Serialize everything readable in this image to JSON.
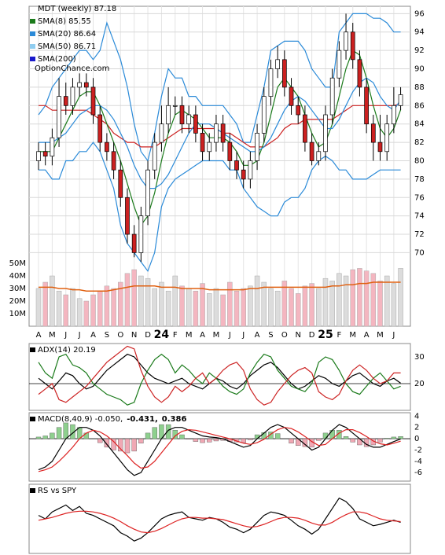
{
  "chart_data": [
    {
      "type": "candlestick",
      "title": "MDT (weekly) 87.18",
      "watermark": "OptionChance.com",
      "x_labels": [
        "A",
        "M",
        "J",
        "J",
        "A",
        "S",
        "O",
        "N",
        "D",
        "24",
        "F",
        "M",
        "A",
        "M",
        "J",
        "J",
        "A",
        "S",
        "O",
        "N",
        "D",
        "25",
        "F",
        "M",
        "A",
        "M",
        "J"
      ],
      "open": [
        80,
        81,
        80.5,
        82.5,
        87,
        86,
        88,
        88.5,
        88,
        85,
        82,
        81,
        79,
        76,
        72,
        70,
        74,
        79,
        82,
        84,
        86,
        86,
        84,
        85,
        83,
        81,
        82,
        84,
        82,
        80,
        79,
        78,
        80,
        83,
        87,
        90,
        91,
        88,
        86,
        85,
        82,
        80,
        81,
        85,
        89,
        92,
        94,
        91,
        88,
        84,
        82,
        81,
        84,
        86
      ],
      "high": [
        82,
        82,
        83.5,
        89,
        88.5,
        89,
        89.5,
        89.5,
        89,
        86,
        83,
        82,
        80,
        77,
        73,
        75,
        80,
        83,
        86,
        88,
        87,
        87,
        86,
        86,
        84,
        83,
        85,
        85,
        83,
        81,
        80,
        81,
        84,
        88,
        91,
        92.5,
        92,
        89,
        87,
        86,
        83,
        82,
        86,
        90,
        93,
        96,
        95,
        92,
        89,
        85,
        85,
        85,
        88,
        88
      ],
      "low": [
        79,
        79.5,
        79.5,
        81.5,
        85,
        85,
        87,
        87,
        84,
        81,
        80,
        78,
        75,
        71,
        69.5,
        69,
        73,
        78,
        81,
        83,
        85,
        83,
        83,
        82,
        80,
        80,
        81,
        81,
        79,
        78,
        77,
        77,
        79,
        82,
        86,
        89,
        87,
        85,
        84,
        81,
        79.5,
        79.5,
        80,
        84,
        88,
        91,
        90,
        87,
        83,
        80,
        80,
        80,
        83,
        85.5
      ],
      "close": [
        81,
        80.5,
        82.5,
        87,
        86,
        88,
        88.5,
        88,
        85,
        82,
        81,
        79,
        76,
        72,
        70,
        74,
        79,
        82,
        84,
        86,
        86,
        84,
        85,
        83,
        81,
        82,
        84,
        82,
        80,
        79,
        78,
        80,
        83,
        87,
        90,
        91,
        88,
        86,
        85,
        82,
        80,
        81,
        85,
        89,
        92,
        94,
        91,
        88,
        84,
        82,
        81,
        84,
        86,
        87.18
      ],
      "up_color": "#ffffff",
      "down_color": "#cc2020",
      "series": [
        {
          "name": "SMA(8) 85.55",
          "color": "#1a7a1a",
          "values": [
            81,
            81,
            81,
            82.5,
            84,
            85.5,
            87,
            87.5,
            87.5,
            86,
            84,
            82,
            80,
            77.5,
            75,
            73,
            74,
            76.5,
            80,
            83,
            85,
            85.5,
            85,
            84.5,
            83.5,
            82.5,
            82.5,
            82.5,
            82,
            81,
            79.5,
            79.5,
            80,
            82,
            85,
            88,
            89,
            88,
            87,
            85,
            83,
            81.5,
            82,
            84,
            87,
            90,
            92,
            91.5,
            89,
            86,
            83.5,
            82.5,
            83.5,
            85.55
          ]
        },
        {
          "name": "SMA(20) 86.64",
          "color": "#2a8ad8",
          "values": [
            82,
            82,
            82,
            82.5,
            83,
            84,
            85,
            85.5,
            86,
            86,
            85.5,
            84.5,
            83,
            81.5,
            79.5,
            78,
            77,
            77,
            77.5,
            78.5,
            80,
            81.5,
            83,
            84,
            84,
            84,
            83.5,
            83,
            82.5,
            82,
            81.5,
            81,
            81,
            81.5,
            82.5,
            84,
            85.5,
            86.5,
            87,
            86.5,
            85.5,
            84.5,
            83.5,
            83.5,
            84.5,
            86,
            87.5,
            88.5,
            89,
            88.5,
            87,
            86,
            85.5,
            86.64
          ]
        },
        {
          "name": "SMA(50) 86.71",
          "color": "#8fcdf0"
        },
        {
          "name": "SMA(200)",
          "color": "#1a1acc"
        }
      ],
      "bands": {
        "color": "#2a8ad8",
        "upper": [
          85,
          86,
          88,
          89,
          90,
          91,
          92,
          92,
          91,
          92,
          95,
          93,
          91,
          88,
          84,
          81,
          80,
          83,
          87,
          90,
          89,
          89,
          87,
          87,
          86,
          86,
          86,
          86,
          85,
          84,
          82,
          82,
          85,
          88,
          92,
          92.5,
          93,
          93,
          93,
          92,
          90,
          89,
          88,
          88,
          94,
          95,
          96,
          96,
          96,
          95.5,
          95.5,
          95,
          94,
          94
        ],
        "lower": [
          79,
          79,
          78,
          78,
          80,
          80,
          81,
          81,
          82,
          81,
          79,
          77,
          73,
          71,
          70,
          69,
          68,
          70,
          75,
          77,
          78,
          78.5,
          79,
          79.5,
          80,
          80,
          80,
          80,
          79,
          79,
          77,
          76,
          75,
          74.5,
          74,
          74,
          75.5,
          76,
          76,
          77,
          79,
          80,
          80.5,
          80,
          79,
          79,
          78,
          78,
          78,
          78.5,
          79,
          79,
          79,
          79
        ]
      },
      "overlays": [
        {
          "color": "#cc2222",
          "values": [
            86,
            86,
            85.5,
            85.5,
            85.5,
            85.5,
            85.5,
            85.5,
            85,
            84.5,
            84,
            83,
            82.5,
            82,
            82,
            81.5,
            81.5,
            81.5,
            82,
            82.5,
            83,
            83.5,
            83.5,
            83.5,
            83.5,
            83.5,
            83.5,
            83,
            83,
            82.5,
            82,
            81.5,
            81.5,
            81.5,
            82,
            82.5,
            83.5,
            84,
            84,
            84.5,
            84.5,
            84.5,
            84.5,
            84.5,
            85,
            85.5,
            86,
            86,
            86,
            86,
            86,
            86,
            86,
            86.2
          ]
        }
      ],
      "ylim": [
        62,
        96.8
      ],
      "yticks": [
        70,
        72,
        74,
        76,
        78,
        80,
        82,
        84,
        86,
        88,
        90,
        92,
        94,
        96
      ],
      "grid": true,
      "volume": {
        "values": [
          30,
          35,
          40,
          28,
          25,
          30,
          22,
          20,
          25,
          28,
          32,
          30,
          35,
          42,
          45,
          40,
          38,
          30,
          35,
          28,
          40,
          32,
          30,
          28,
          34,
          26,
          30,
          25,
          35,
          28,
          30,
          32,
          40,
          35,
          30,
          28,
          36,
          30,
          26,
          32,
          34,
          30,
          38,
          36,
          42,
          40,
          45,
          46,
          44,
          42,
          36,
          40,
          34,
          46
        ],
        "average": [
          31,
          31,
          31,
          30,
          30,
          29,
          29,
          28,
          28,
          28,
          28,
          29,
          30,
          31,
          32,
          32,
          32,
          32,
          31,
          31,
          31,
          30,
          30,
          30,
          30,
          29,
          29,
          29,
          29,
          29,
          29,
          30,
          30,
          31,
          31,
          31,
          31,
          31,
          31,
          31,
          31,
          31,
          31,
          32,
          32,
          33,
          33,
          34,
          34,
          35,
          35,
          35,
          35,
          35
        ],
        "up_color": "#dcdcdc",
        "down_color": "#f4b6c0",
        "avg_color": "#e06010",
        "ylim": [
          0,
          254.4
        ],
        "yticks": [
          {
            "value": 10,
            "label": "10M"
          },
          {
            "value": 20,
            "label": "20M"
          },
          {
            "value": 30,
            "label": "30M"
          },
          {
            "value": 40,
            "label": "40M"
          },
          {
            "value": 50,
            "label": "50M"
          }
        ]
      }
    },
    {
      "type": "line",
      "title": "ADX(14) 20.19",
      "ylim": [
        10,
        35
      ],
      "yticks": [
        20,
        30
      ],
      "series": [
        {
          "color": "#000000",
          "values": [
            22,
            20,
            18,
            21,
            24,
            23,
            20,
            18,
            19,
            22,
            25,
            27,
            29,
            31,
            30,
            27,
            24,
            22,
            21,
            20,
            21,
            22,
            20,
            19,
            18,
            20,
            22,
            21,
            19,
            18,
            20,
            23,
            25,
            27,
            28,
            26,
            23,
            20,
            18,
            19,
            21,
            23,
            22,
            20,
            19,
            21,
            23,
            24,
            22,
            20,
            19,
            21,
            22,
            20.19
          ]
        },
        {
          "color": "#1a7a1a",
          "values": [
            28,
            24,
            22,
            30,
            31,
            27,
            26,
            24,
            20,
            18,
            16,
            15,
            14,
            12,
            13,
            20,
            25,
            29,
            31,
            29,
            24,
            27,
            25,
            22,
            20,
            24,
            22,
            19,
            17,
            16,
            18,
            24,
            28,
            31,
            30,
            25,
            22,
            19,
            18,
            17,
            20,
            28,
            30,
            29,
            25,
            20,
            17,
            16,
            19,
            22,
            24,
            21,
            18,
            19
          ]
        },
        {
          "color": "#cc2222",
          "values": [
            16,
            18,
            20,
            14,
            13,
            15,
            17,
            19,
            22,
            25,
            28,
            30,
            32,
            34,
            33,
            25,
            19,
            15,
            13,
            15,
            19,
            17,
            19,
            22,
            24,
            20,
            22,
            25,
            27,
            28,
            25,
            18,
            14,
            12,
            13,
            17,
            20,
            23,
            25,
            26,
            24,
            17,
            15,
            14,
            16,
            21,
            25,
            27,
            25,
            22,
            20,
            21,
            24,
            24
          ]
        }
      ]
    },
    {
      "type": "macd",
      "title_parts": [
        "MACD(8,40,9) -0.050,",
        "-0.431,",
        "0.386"
      ],
      "title_colors": [
        "#000000",
        "#e01010",
        "#2255cc"
      ],
      "ylim": [
        -7.5,
        4.6
      ],
      "yticks": [
        -6,
        -4,
        -2,
        0,
        2,
        4
      ],
      "series": [
        {
          "color": "#000000",
          "values": [
            -5.5,
            -5,
            -4,
            -2,
            0,
            1,
            2,
            2,
            1.5,
            0.5,
            -1,
            -2.5,
            -4,
            -5.5,
            -6.5,
            -6,
            -4,
            -2,
            0,
            1.5,
            2,
            2,
            1.5,
            1,
            0.5,
            0.3,
            0.2,
            0,
            -0.5,
            -1,
            -1.5,
            -1.2,
            0,
            1,
            2,
            2.5,
            2,
            1,
            0,
            -1,
            -2,
            -1.5,
            0,
            1.5,
            2.5,
            2,
            1,
            0,
            -1,
            -1.5,
            -1.5,
            -1,
            -0.5,
            -0.05
          ]
        },
        {
          "color": "#dd2222",
          "values": [
            -5.8,
            -5.5,
            -5,
            -4,
            -2.8,
            -1.5,
            0,
            1,
            1.5,
            1.2,
            0.5,
            -0.5,
            -1.8,
            -3,
            -4.3,
            -5.2,
            -5,
            -4,
            -2.5,
            -1,
            0.5,
            1.3,
            1.6,
            1.5,
            1.2,
            0.9,
            0.6,
            0.3,
            0,
            -0.4,
            -0.8,
            -1,
            -0.7,
            -0.1,
            0.8,
            1.6,
            2,
            1.8,
            1.2,
            0.4,
            -0.5,
            -1.2,
            -1,
            0,
            1,
            1.6,
            1.6,
            1.1,
            0.4,
            -0.4,
            -0.9,
            -1.1,
            -0.8,
            -0.43
          ]
        }
      ],
      "histogram": [
        0.3,
        0.5,
        1,
        2,
        2.8,
        2.5,
        2,
        1,
        0,
        -0.7,
        -1.5,
        -2,
        -2.2,
        -2.5,
        -2.2,
        -0.8,
        1,
        2,
        2.5,
        2.5,
        1.5,
        0.7,
        -0.1,
        -0.5,
        -0.7,
        -0.6,
        -0.4,
        -0.3,
        -0.5,
        -0.6,
        -0.7,
        -0.2,
        0.7,
        1.1,
        1.2,
        0.9,
        0,
        -0.8,
        -1.2,
        -1.4,
        -1.5,
        -0.3,
        1,
        1.5,
        1.5,
        0.4,
        -0.6,
        -1.1,
        -1.4,
        -1.1,
        -0.6,
        0.1,
        0.3,
        0.386
      ],
      "pos_color": "#8ed08e",
      "neg_color": "#f0a8b4"
    },
    {
      "type": "line",
      "title": "RS vs SPY",
      "ylim": [
        0,
        100
      ],
      "series": [
        {
          "color": "#000000",
          "values": [
            55,
            50,
            60,
            65,
            70,
            62,
            68,
            58,
            55,
            50,
            45,
            40,
            30,
            25,
            18,
            22,
            30,
            40,
            50,
            55,
            58,
            60,
            52,
            50,
            48,
            52,
            50,
            45,
            38,
            35,
            30,
            35,
            45,
            55,
            60,
            58,
            55,
            48,
            40,
            35,
            28,
            35,
            50,
            65,
            80,
            75,
            65,
            50,
            45,
            40,
            42,
            45,
            48,
            45
          ]
        },
        {
          "color": "#dd2222",
          "values": [
            48,
            50,
            52,
            55,
            58,
            60,
            61,
            61,
            60,
            58,
            55,
            51,
            46,
            40,
            35,
            31,
            30,
            32,
            36,
            41,
            46,
            50,
            52,
            52,
            51,
            51,
            50,
            49,
            46,
            43,
            40,
            38,
            39,
            42,
            46,
            50,
            52,
            52,
            51,
            48,
            44,
            41,
            41,
            45,
            51,
            56,
            60,
            60,
            58,
            54,
            50,
            48,
            47,
            46
          ]
        }
      ]
    }
  ]
}
